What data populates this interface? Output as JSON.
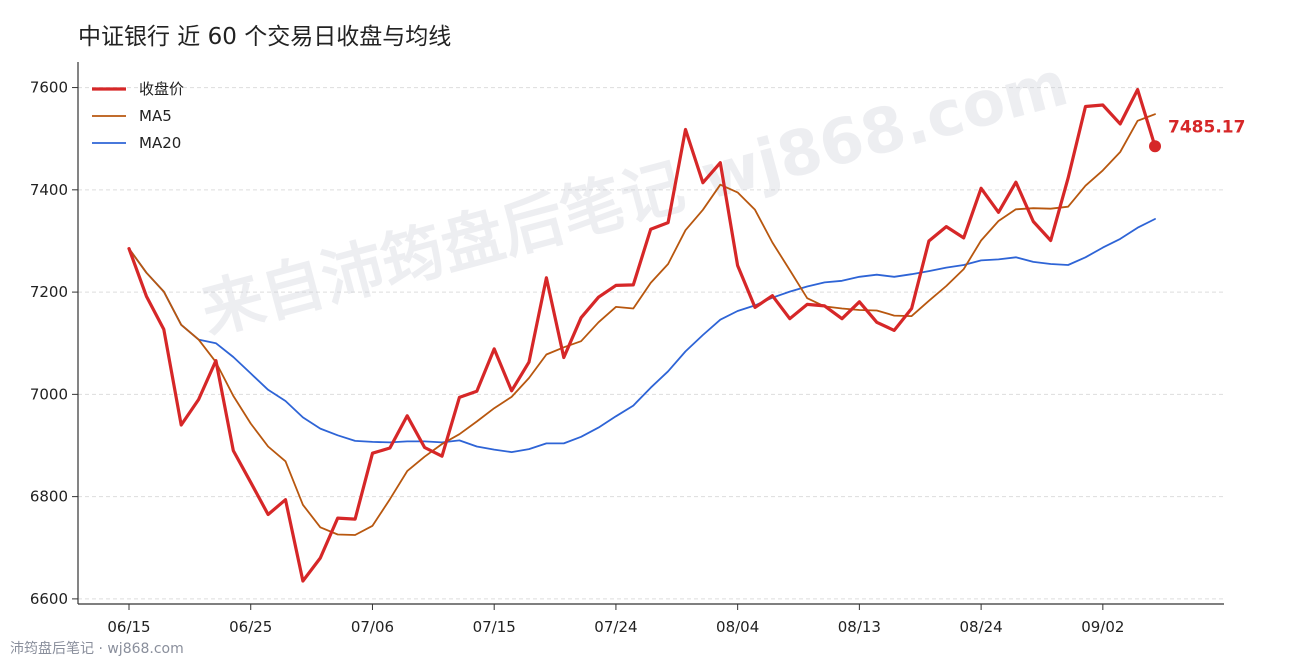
{
  "chart_data": {
    "type": "line",
    "title": "中证银行 近 60 个交易日收盘与均线",
    "xlabel": "",
    "ylabel": "",
    "ylim": [
      6590,
      7650
    ],
    "yticks": [
      6600,
      6800,
      7000,
      7200,
      7400,
      7600
    ],
    "grid": "horizontal",
    "legend_position": "top-left",
    "x_ticks": [
      {
        "index": 0,
        "label": "06/15"
      },
      {
        "index": 7,
        "label": "06/25"
      },
      {
        "index": 14,
        "label": "07/06"
      },
      {
        "index": 21,
        "label": "07/15"
      },
      {
        "index": 28,
        "label": "07/24"
      },
      {
        "index": 35,
        "label": "08/04"
      },
      {
        "index": 42,
        "label": "08/13"
      },
      {
        "index": 49,
        "label": "08/24"
      },
      {
        "index": 56,
        "label": "09/02"
      }
    ],
    "series": [
      {
        "name": "收盘价",
        "color": "#d62728",
        "values": [
          7285,
          7192,
          7127,
          6940,
          6990,
          7066,
          6890,
          6828,
          6765,
          6794,
          6635,
          6680,
          6758,
          6756,
          6885,
          6895,
          6958,
          6896,
          6879,
          6994,
          7006,
          7089,
          7007,
          7063,
          7228,
          7072,
          7150,
          7190,
          7213,
          7214,
          7323,
          7336,
          7518,
          7414,
          7453,
          7252,
          7170,
          7193,
          7148,
          7176,
          7173,
          7148,
          7181,
          7141,
          7125,
          7168,
          7300,
          7328,
          7306,
          7403,
          7356,
          7415,
          7338,
          7301,
          7423,
          7563,
          7566,
          7529,
          7596,
          7485.17
        ]
      },
      {
        "name": "MA5",
        "color": "#b8570f",
        "values": [
          7285,
          7238,
          7201,
          7136,
          7107,
          7063,
          6997,
          6943,
          6898,
          6869,
          6784,
          6740,
          6726,
          6725,
          6743,
          6795,
          6850,
          6878,
          6903,
          6922,
          6947,
          6973,
          6995,
          7032,
          7078,
          7092,
          7104,
          7141,
          7171,
          7168,
          7218,
          7255,
          7321,
          7361,
          7410,
          7395,
          7361,
          7297,
          7243,
          7188,
          7172,
          7168,
          7165,
          7164,
          7154,
          7153,
          7183,
          7212,
          7245,
          7301,
          7339,
          7362,
          7364,
          7363,
          7367,
          7408,
          7438,
          7474,
          7535,
          7548
        ]
      },
      {
        "name": "MA20",
        "color": "#2e64d6",
        "values": [
          7285,
          7238,
          7201,
          7136,
          7107,
          7100,
          7073,
          7041,
          7009,
          6987,
          6955,
          6933,
          6920,
          6909,
          6907,
          6906,
          6908,
          6908,
          6906,
          6910,
          6898,
          6892,
          6887,
          6893,
          6904,
          6904,
          6917,
          6935,
          6957,
          6978,
          7013,
          7045,
          7084,
          7116,
          7146,
          7163,
          7174,
          7189,
          7201,
          7211,
          7219,
          7222,
          7230,
          7234,
          7230,
          7235,
          7241,
          7248,
          7253,
          7262,
          7264,
          7268,
          7259,
          7255,
          7253,
          7268,
          7287,
          7304,
          7326,
          7343
        ]
      }
    ],
    "last_value_label": "7485.17"
  },
  "watermark": "来自沛筠盘后笔记 wj868.com",
  "footer": "沛筠盘后笔记 · wj868.com"
}
